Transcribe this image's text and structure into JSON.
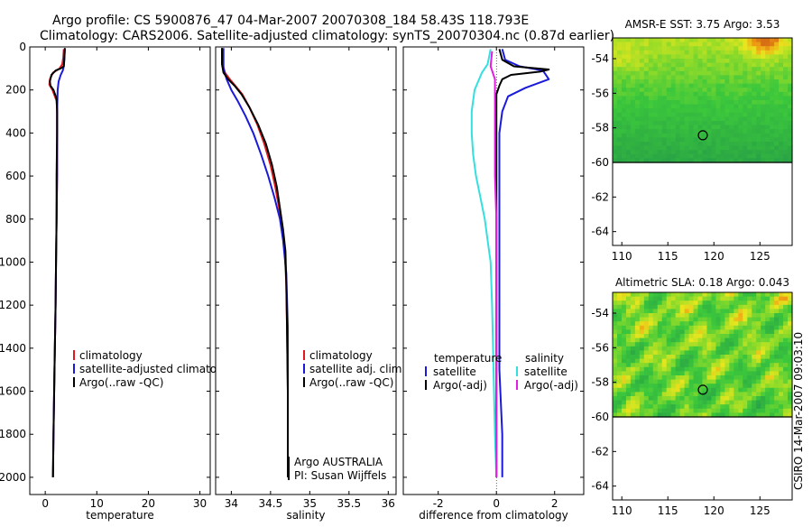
{
  "header": {
    "line1": "Argo profile: CS 5900876_47 04-Mar-2007 20070308_184 58.43S 118.793E",
    "line2": "Climatology: CARS2006. Satellite-adjusted climatology: synTS_20070304.nc (0.87d earlier)"
  },
  "colors": {
    "climatology": "#e4181c",
    "satellite": "#1a1ad8",
    "argo": "#000000",
    "sal_satellite": "#33e0e0",
    "sal_argo": "#e21ee2",
    "map_point": "#000000"
  },
  "footer": {
    "credit": "CSIRO 14-Mar-2007 09:03:10"
  },
  "chart_data": [
    {
      "type": "line",
      "id": "temperature",
      "xlabel": "temperature",
      "ylabel": "",
      "xlim": [
        -3,
        32
      ],
      "ylim": [
        0,
        2080
      ],
      "y_inverted": true,
      "xticks": [
        0,
        10,
        20,
        30
      ],
      "yticks": [
        0,
        200,
        400,
        600,
        800,
        1000,
        1200,
        1400,
        1600,
        1800,
        2000
      ],
      "legend": [
        "climatology",
        "satellite-adjusted climatology",
        "Argo(..raw -QC)"
      ],
      "series": [
        {
          "name": "climatology",
          "color_key": "climatology",
          "points": [
            [
              3.6,
              10
            ],
            [
              3.5,
              50
            ],
            [
              3.3,
              80
            ],
            [
              2.8,
              100
            ],
            [
              1.5,
              120
            ],
            [
              0.9,
              150
            ],
            [
              0.8,
              175
            ],
            [
              1.4,
              200
            ],
            [
              2.2,
              250
            ],
            [
              2.3,
              300
            ],
            [
              2.3,
              400
            ],
            [
              2.3,
              600
            ],
            [
              2.2,
              800
            ],
            [
              2.1,
              1000
            ],
            [
              2.0,
              1200
            ],
            [
              1.8,
              1500
            ],
            [
              1.6,
              1800
            ],
            [
              1.5,
              2000
            ]
          ]
        },
        {
          "name": "satellite-adjusted climatology",
          "color_key": "satellite",
          "points": [
            [
              3.8,
              10
            ],
            [
              3.7,
              50
            ],
            [
              3.6,
              90
            ],
            [
              3.4,
              110
            ],
            [
              3.0,
              130
            ],
            [
              2.6,
              160
            ],
            [
              2.4,
              200
            ],
            [
              2.3,
              300
            ],
            [
              2.3,
              400
            ],
            [
              2.3,
              600
            ],
            [
              2.2,
              800
            ],
            [
              2.1,
              1000
            ],
            [
              2.0,
              1200
            ],
            [
              1.8,
              1500
            ],
            [
              1.6,
              1800
            ],
            [
              1.5,
              2000
            ]
          ]
        },
        {
          "name": "Argo(..raw -QC)",
          "color_key": "argo",
          "points": [
            [
              3.8,
              5
            ],
            [
              3.7,
              60
            ],
            [
              3.6,
              90
            ],
            [
              3.0,
              100
            ],
            [
              2.0,
              110
            ],
            [
              1.2,
              130
            ],
            [
              0.9,
              160
            ],
            [
              1.0,
              180
            ],
            [
              1.6,
              200
            ],
            [
              2.2,
              240
            ],
            [
              2.3,
              300
            ],
            [
              2.3,
              400
            ],
            [
              2.2,
              600
            ],
            [
              2.2,
              800
            ],
            [
              2.1,
              1000
            ],
            [
              2.0,
              1200
            ],
            [
              1.8,
              1500
            ],
            [
              1.6,
              1800
            ],
            [
              1.5,
              2000
            ]
          ]
        }
      ]
    },
    {
      "type": "line",
      "id": "salinity",
      "xlabel": "salinity",
      "xlim": [
        33.8,
        36.1
      ],
      "ylim": [
        0,
        2080
      ],
      "y_inverted": true,
      "xticks": [
        34,
        34.5,
        35,
        35.5,
        36
      ],
      "xticklabels": [
        "34",
        "34.5",
        "35",
        "35.5",
        "36"
      ],
      "legend": [
        "climatology",
        "satellite adj. clim.",
        "Argo(..raw -QC)"
      ],
      "annotations": [
        "Argo AUSTRALIA",
        "PI: Susan Wijffels"
      ],
      "series": [
        {
          "name": "climatology",
          "color_key": "climatology",
          "points": [
            [
              33.88,
              5
            ],
            [
              33.89,
              80
            ],
            [
              33.92,
              120
            ],
            [
              33.98,
              150
            ],
            [
              34.05,
              180
            ],
            [
              34.14,
              220
            ],
            [
              34.23,
              280
            ],
            [
              34.33,
              360
            ],
            [
              34.42,
              450
            ],
            [
              34.5,
              550
            ],
            [
              34.56,
              650
            ],
            [
              34.61,
              750
            ],
            [
              34.65,
              850
            ],
            [
              34.68,
              950
            ],
            [
              34.7,
              1100
            ],
            [
              34.71,
              1300
            ],
            [
              34.72,
              1600
            ],
            [
              34.72,
              2000
            ]
          ]
        },
        {
          "name": "satellite adj. clim.",
          "color_key": "satellite",
          "points": [
            [
              33.9,
              5
            ],
            [
              33.9,
              100
            ],
            [
              33.94,
              150
            ],
            [
              34.0,
              200
            ],
            [
              34.08,
              250
            ],
            [
              34.18,
              320
            ],
            [
              34.28,
              400
            ],
            [
              34.38,
              500
            ],
            [
              34.47,
              600
            ],
            [
              34.55,
              700
            ],
            [
              34.62,
              800
            ],
            [
              34.66,
              900
            ],
            [
              34.7,
              1050
            ],
            [
              34.72,
              1300
            ],
            [
              34.72,
              1600
            ],
            [
              34.72,
              2000
            ]
          ]
        },
        {
          "name": "Argo(..raw -QC)",
          "color_key": "argo",
          "points": [
            [
              33.88,
              5
            ],
            [
              33.88,
              80
            ],
            [
              33.9,
              120
            ],
            [
              33.96,
              150
            ],
            [
              34.04,
              180
            ],
            [
              34.13,
              220
            ],
            [
              34.23,
              280
            ],
            [
              34.34,
              360
            ],
            [
              34.44,
              450
            ],
            [
              34.52,
              550
            ],
            [
              34.58,
              650
            ],
            [
              34.62,
              750
            ],
            [
              34.66,
              850
            ],
            [
              34.69,
              950
            ],
            [
              34.7,
              1100
            ],
            [
              34.71,
              1300
            ],
            [
              34.72,
              1600
            ],
            [
              34.72,
              2000
            ]
          ]
        }
      ]
    },
    {
      "type": "line",
      "id": "difference",
      "xlabel": "difference from climatology",
      "xlim": [
        -3.2,
        3.0
      ],
      "ylim": [
        0,
        2080
      ],
      "y_inverted": true,
      "xticks": [
        -2,
        0,
        2
      ],
      "legend_headers": [
        "temperature",
        "salinity"
      ],
      "legend": [
        "satellite",
        "Argo(-adj)",
        "satellite",
        "Argo(-adj)"
      ],
      "series": [
        {
          "name": "temperature satellite",
          "color_key": "satellite",
          "points": [
            [
              0.2,
              10
            ],
            [
              0.3,
              60
            ],
            [
              0.8,
              90
            ],
            [
              1.6,
              110
            ],
            [
              1.8,
              150
            ],
            [
              1.0,
              190
            ],
            [
              0.4,
              230
            ],
            [
              0.2,
              300
            ],
            [
              0.1,
              400
            ],
            [
              0.1,
              600
            ],
            [
              0.1,
              800
            ],
            [
              0.1,
              1000
            ],
            [
              0.1,
              1200
            ],
            [
              0.1,
              1500
            ],
            [
              0.2,
              1800
            ],
            [
              0.2,
              2000
            ]
          ]
        },
        {
          "name": "temperature Argo(-adj)",
          "color_key": "argo",
          "points": [
            [
              0.1,
              10
            ],
            [
              0.2,
              60
            ],
            [
              0.6,
              90
            ],
            [
              1.8,
              105
            ],
            [
              1.5,
              115
            ],
            [
              0.5,
              130
            ],
            [
              0.2,
              150
            ],
            [
              0.1,
              180
            ],
            [
              0.0,
              220
            ],
            [
              0.0,
              300
            ],
            [
              0.0,
              500
            ],
            [
              0.0,
              800
            ],
            [
              0.0,
              1200
            ],
            [
              0.0,
              1600
            ],
            [
              0.0,
              2000
            ]
          ]
        },
        {
          "name": "salinity satellite",
          "color_key": "sal_satellite",
          "points": [
            [
              -0.2,
              10
            ],
            [
              -0.3,
              80
            ],
            [
              -0.5,
              120
            ],
            [
              -0.75,
              200
            ],
            [
              -0.85,
              300
            ],
            [
              -0.85,
              400
            ],
            [
              -0.8,
              500
            ],
            [
              -0.7,
              600
            ],
            [
              -0.55,
              700
            ],
            [
              -0.4,
              800
            ],
            [
              -0.3,
              900
            ],
            [
              -0.2,
              1000
            ],
            [
              -0.15,
              1200
            ],
            [
              -0.1,
              1500
            ],
            [
              -0.05,
              1800
            ],
            [
              0.0,
              2000
            ]
          ]
        },
        {
          "name": "salinity Argo(-adj)",
          "color_key": "sal_argo",
          "points": [
            [
              -0.15,
              20
            ],
            [
              -0.2,
              90
            ],
            [
              -0.05,
              150
            ],
            [
              -0.05,
              200
            ],
            [
              -0.05,
              400
            ],
            [
              -0.05,
              600
            ],
            [
              0.0,
              800
            ],
            [
              0.0,
              1200
            ],
            [
              0.0,
              1600
            ],
            [
              0.0,
              2000
            ]
          ]
        }
      ]
    },
    {
      "type": "heatmap",
      "id": "sst_map",
      "title": "AMSR-E SST: 3.75  Argo: 3.53",
      "xlim": [
        109,
        128.5
      ],
      "ylim": [
        -64.8,
        -52.8
      ],
      "xticks": [
        110,
        115,
        120,
        125
      ],
      "yticks": [
        -54,
        -56,
        -58,
        -60,
        -62,
        -64
      ],
      "xticklabels": [
        "110",
        "115",
        "120",
        "125"
      ],
      "yticklabels": [
        "-54",
        "-56",
        "-58",
        "-60",
        "-62",
        "-64"
      ],
      "data_lat_range": [
        -60,
        -52.8
      ],
      "point": [
        118.8,
        -58.43
      ]
    },
    {
      "type": "heatmap",
      "id": "sla_map",
      "title": "Altimetric SLA: 0.18  Argo: 0.043",
      "xlim": [
        109,
        128.5
      ],
      "ylim": [
        -64.8,
        -52.8
      ],
      "xticks": [
        110,
        115,
        120,
        125
      ],
      "yticks": [
        -54,
        -56,
        -58,
        -60,
        -62,
        -64
      ],
      "xticklabels": [
        "110",
        "115",
        "120",
        "125"
      ],
      "yticklabels": [
        "-54",
        "-56",
        "-58",
        "-60",
        "-62",
        "-64"
      ],
      "data_lat_range": [
        -60,
        -52.8
      ],
      "point": [
        118.8,
        -58.43
      ]
    }
  ]
}
